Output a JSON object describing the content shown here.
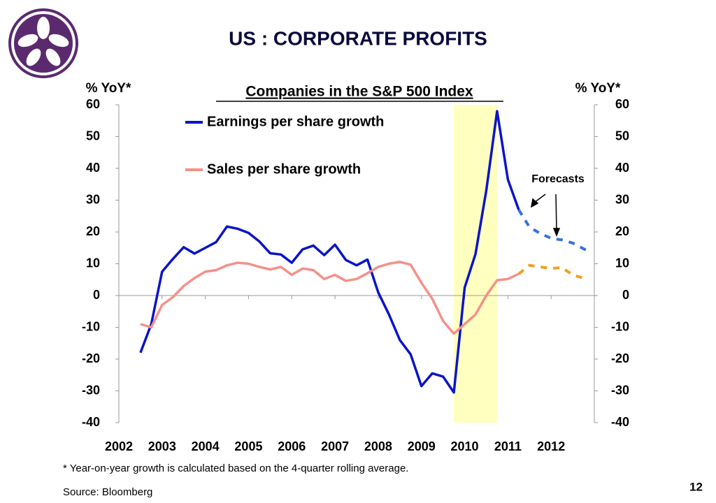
{
  "chart_data": {
    "type": "line",
    "title": "US : CORPORATE PROFITS",
    "subtitle": "Companies in the S&P 500 Index",
    "y_label": "% YoY*",
    "y2_label": "% YoY*",
    "annotation": "Forecasts",
    "footnote": "* Year-on-year growth is calculated based on the 4-quarter rolling average.",
    "source": "Source: Bloomberg",
    "page_number": "12",
    "xlim": [
      2002,
      2013
    ],
    "xticks": [
      2002,
      2003,
      2004,
      2005,
      2006,
      2007,
      2008,
      2009,
      2010,
      2011,
      2012
    ],
    "ylim": [
      -40,
      60
    ],
    "yticks": [
      -40,
      -30,
      -20,
      -10,
      0,
      10,
      20,
      30,
      40,
      50,
      60
    ],
    "y2lim": [
      -40,
      60
    ],
    "y2ticks": [
      -40,
      -30,
      -20,
      -10,
      0,
      10,
      20,
      30,
      40,
      50,
      60
    ],
    "shaded_range": [
      2009.75,
      2010.75
    ],
    "shaded_color": "#ffffc0",
    "series": [
      {
        "name": "Earnings per share growth",
        "color": "#0a14c8",
        "forecast_color": "#3a6ee8",
        "x": [
          2002.5,
          2002.75,
          2003,
          2003.25,
          2003.5,
          2003.75,
          2004,
          2004.25,
          2004.5,
          2004.75,
          2005,
          2005.25,
          2005.5,
          2005.75,
          2006,
          2006.25,
          2006.5,
          2006.75,
          2007,
          2007.25,
          2007.5,
          2007.75,
          2008,
          2008.25,
          2008.5,
          2008.75,
          2009,
          2009.25,
          2009.5,
          2009.75,
          2010,
          2010.25,
          2010.5,
          2010.75,
          2011,
          2011.25
        ],
        "values": [
          -18,
          -9,
          7.5,
          11.5,
          15.2,
          13.2,
          15,
          16.8,
          21.7,
          21,
          19.7,
          17,
          13.3,
          12.9,
          10.3,
          14.5,
          15.7,
          12.7,
          16,
          11.2,
          9.5,
          11.3,
          1,
          -6,
          -14,
          -18.5,
          -28.5,
          -24.5,
          -25.5,
          -30.5,
          2.5,
          13,
          33,
          58,
          36.5,
          27
        ],
        "forecast_x": [
          2011.25,
          2011.5,
          2011.75,
          2012,
          2012.25,
          2012.5,
          2012.85
        ],
        "forecast_values": [
          27,
          21.5,
          19.5,
          18,
          17.5,
          16.5,
          14
        ]
      },
      {
        "name": "Sales per share growth",
        "color": "#f4908a",
        "forecast_color": "#f0a020",
        "x": [
          2002.5,
          2002.75,
          2003,
          2003.25,
          2003.5,
          2003.75,
          2004,
          2004.25,
          2004.5,
          2004.75,
          2005,
          2005.25,
          2005.5,
          2005.75,
          2006,
          2006.25,
          2006.5,
          2006.75,
          2007,
          2007.25,
          2007.5,
          2007.75,
          2008,
          2008.25,
          2008.5,
          2008.75,
          2009,
          2009.25,
          2009.5,
          2009.75,
          2010,
          2010.25,
          2010.5,
          2010.75,
          2011,
          2011.25
        ],
        "values": [
          -9,
          -10,
          -3,
          -0.5,
          3,
          5.5,
          7.5,
          8,
          9.5,
          10.3,
          10,
          9,
          8.2,
          9,
          6.5,
          8.5,
          8,
          5.2,
          6.5,
          4.6,
          5.2,
          7,
          9,
          10,
          10.6,
          9.7,
          4,
          -1,
          -8,
          -12,
          -9,
          -6,
          0,
          4.8,
          5.2,
          6.8
        ],
        "forecast_x": [
          2011.25,
          2011.5,
          2011.75,
          2012,
          2012.25,
          2012.5,
          2012.85
        ],
        "forecast_values": [
          6.8,
          9.5,
          9,
          8.5,
          8.8,
          6.5,
          5
        ]
      }
    ]
  }
}
